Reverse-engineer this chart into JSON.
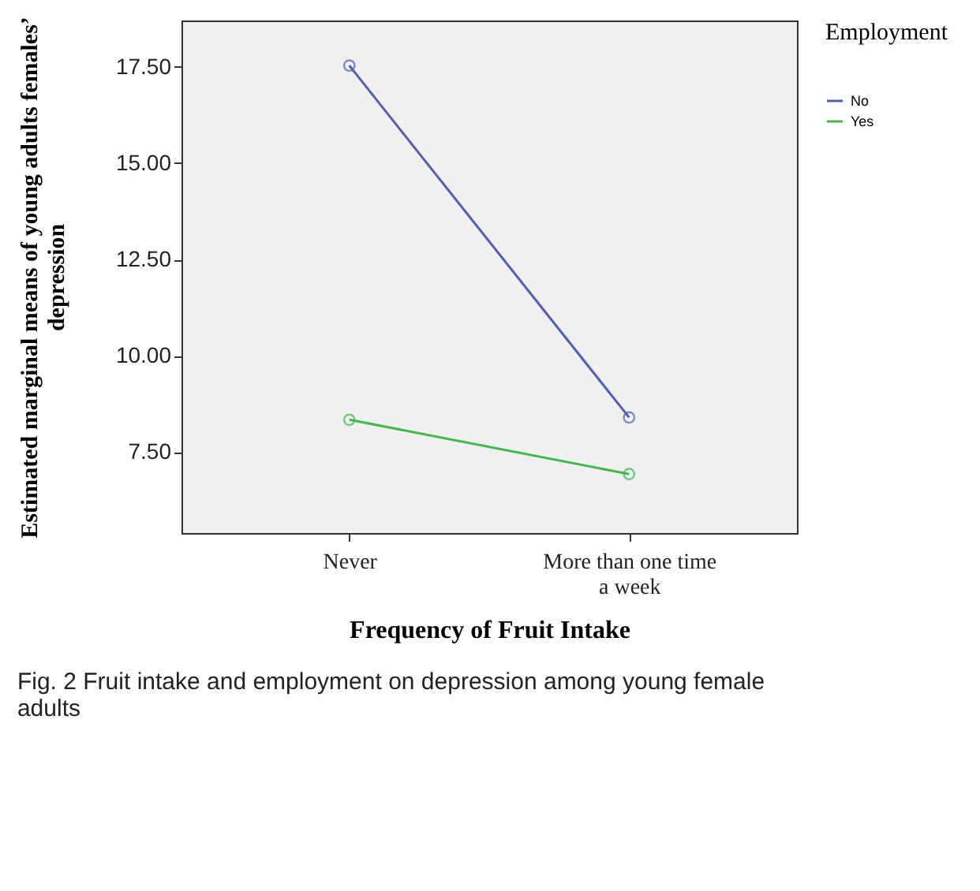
{
  "chart_data": {
    "type": "line",
    "xlabel": "Frequency of Fruit Intake",
    "ylabel": "Estimated marginal means of young adults females’ depression",
    "legend_title": "Employment",
    "categories": [
      "Never",
      "More than one time a week"
    ],
    "series": [
      {
        "name": "No",
        "color": "#4f5fb8",
        "values": [
          17.53,
          8.4
        ]
      },
      {
        "name": "Yes",
        "color": "#3fb94a",
        "values": [
          8.34,
          6.93
        ]
      }
    ],
    "ylim": [
      5.4,
      18.7
    ],
    "yticks": [
      {
        "value": 7.5,
        "label": "7.50"
      },
      {
        "value": 10,
        "label": "10.00"
      },
      {
        "value": 12.5,
        "label": "12.50"
      },
      {
        "value": 15,
        "label": "15.00"
      },
      {
        "value": 17.5,
        "label": "17.50"
      }
    ],
    "grid": false,
    "legend": "top right",
    "marker": "circle",
    "line_style": "solid",
    "annotations": [
      "Fig. 2 Fruit intake and employment on depression among young female adults"
    ]
  }
}
